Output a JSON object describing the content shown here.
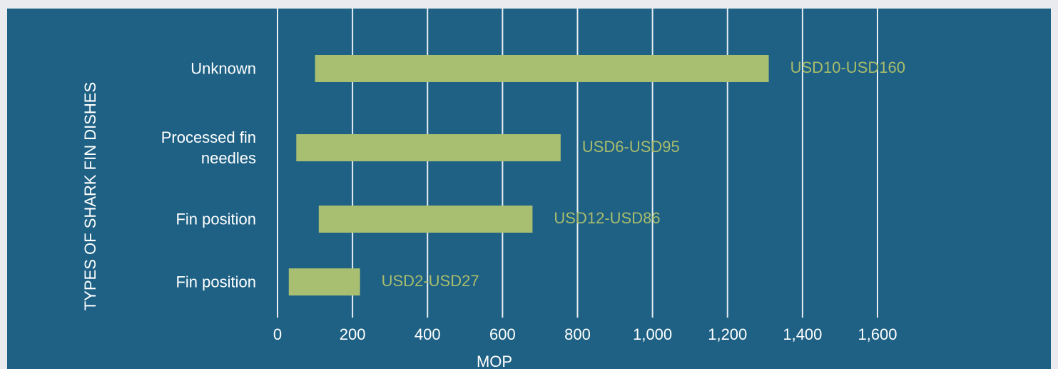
{
  "chart_data": {
    "type": "range-bar",
    "ylabel": "TYPES OF SHARK FIN DISHES",
    "xlabel": "MOP",
    "categories": [
      "Unknown",
      "Processed fin needles",
      "Fin position",
      "Fin position"
    ],
    "low": [
      100,
      50,
      110,
      30
    ],
    "high": [
      1310,
      755,
      680,
      220
    ],
    "value_labels": [
      "USD10-USD160",
      "USD6-USD95",
      "USD12-USD86",
      "USD2-USD27"
    ],
    "color": "#a8bf72",
    "label_color": "#a9bc6c",
    "xlim": [
      0,
      1600
    ],
    "xticks": [
      0,
      200,
      400,
      600,
      800,
      {
        "value": 1000,
        "label": "1,000"
      },
      {
        "value": 1200,
        "label": "1,200"
      },
      {
        "value": 1400,
        "label": "1,400"
      },
      {
        "value": 1600,
        "label": "1,600"
      }
    ],
    "grid": true
  }
}
